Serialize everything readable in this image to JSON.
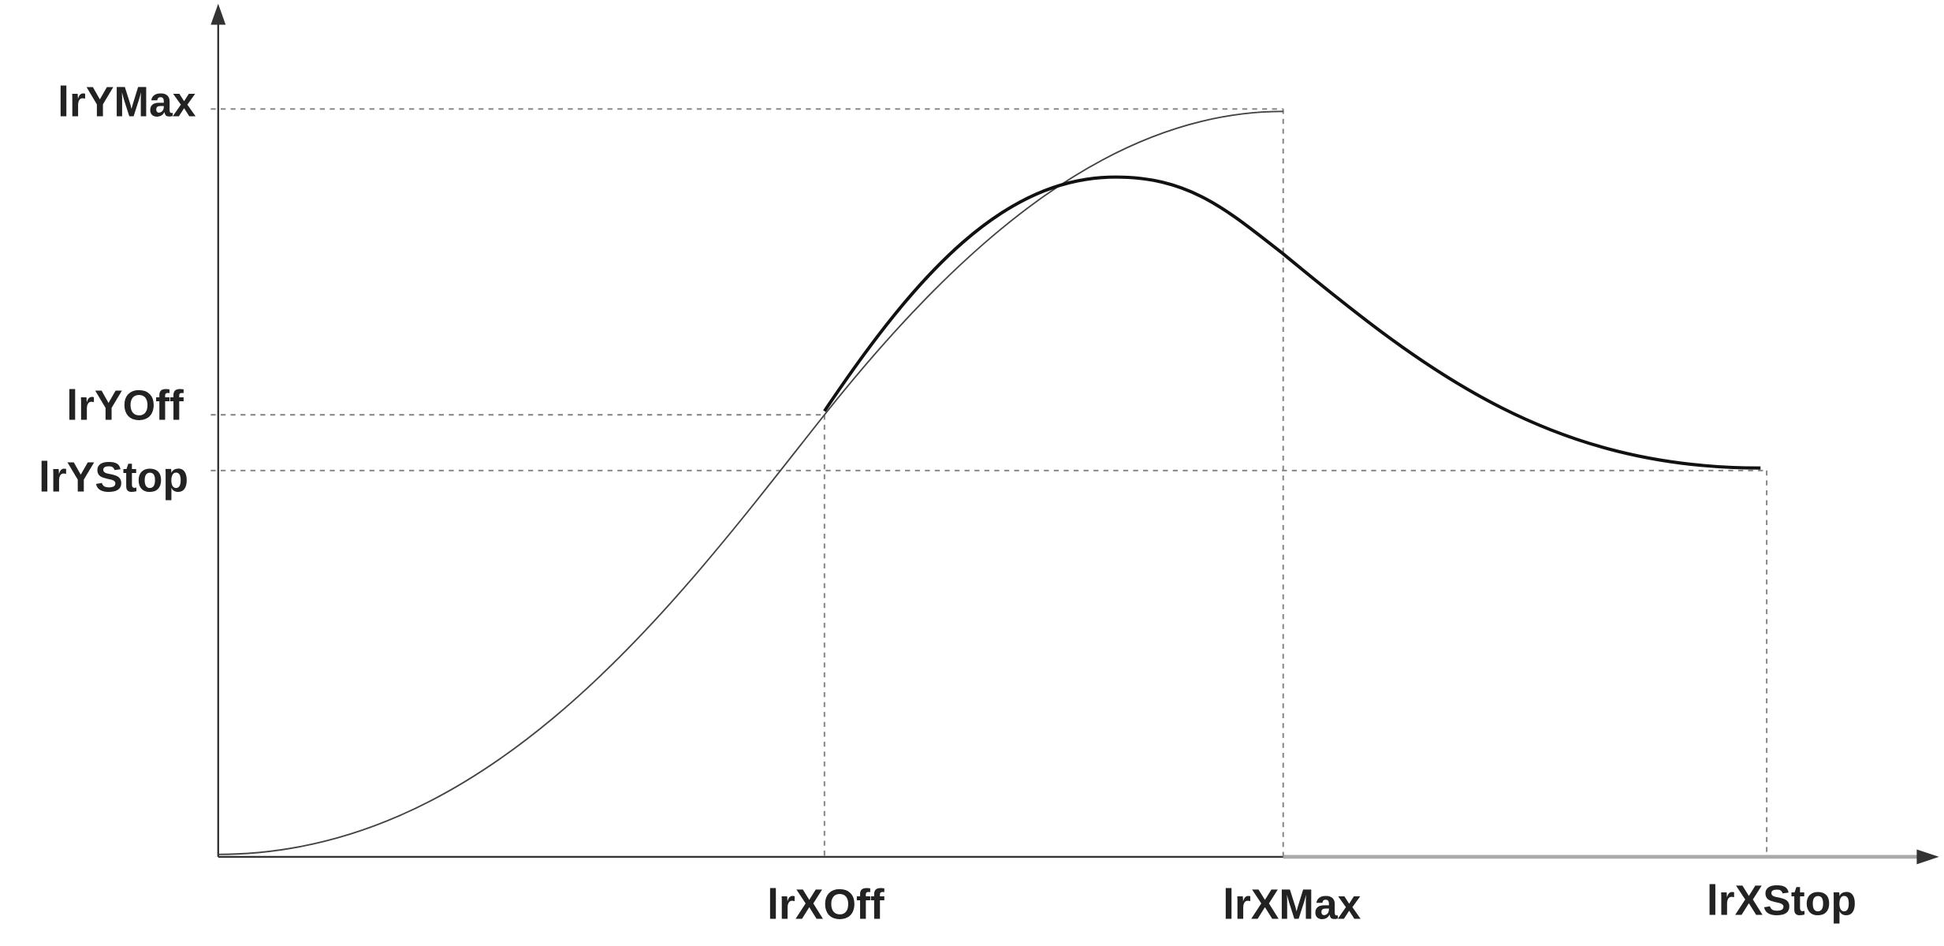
{
  "y_axis_labels": [
    "lrYMax",
    "lrYOff",
    "lrYStop"
  ],
  "x_axis_labels": [
    "lrXOff",
    "lrXMax",
    "lrXStop"
  ]
}
